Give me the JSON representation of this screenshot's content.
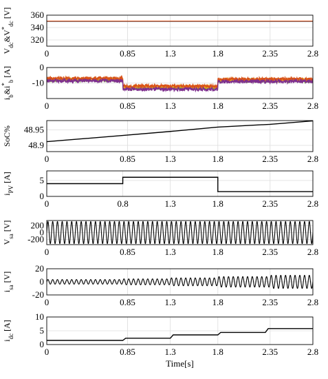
{
  "chart_data": [
    {
      "type": "line",
      "ylabel_main": "V",
      "ylabel_sub": "dc",
      "ylabel_mid": "&V",
      "ylabel_sup": "*",
      "ylabel_sub2": "dc",
      "ylabel_unit": "[V]",
      "xlim": [
        0,
        2.8
      ],
      "ylim": [
        310,
        360
      ],
      "xticks": [
        0,
        0.85,
        1.3,
        1.8,
        2.35,
        2.8
      ],
      "xtick_labels": [
        "0",
        "0.85",
        "1.3",
        "1.8",
        "2.35",
        "2.8"
      ],
      "yticks": [
        320,
        340,
        360
      ],
      "ytick_labels": [
        "320",
        "340",
        "360"
      ],
      "series": [
        {
          "color": "#0072bd",
          "x": [
            0,
            2.8
          ],
          "y": [
            350,
            350
          ]
        },
        {
          "color": "#d95319",
          "x": [
            0,
            2.8
          ],
          "y": [
            350.3,
            350.3
          ]
        }
      ]
    },
    {
      "type": "line",
      "ylabel_main": "i",
      "ylabel_sub": "b",
      "ylabel_mid": "&i",
      "ylabel_sup": "*",
      "ylabel_sub2": "b",
      "ylabel_unit": "[A]",
      "xlim": [
        0,
        2.8
      ],
      "ylim": [
        -20,
        0
      ],
      "xticks": [
        0,
        0.85,
        1.3,
        1.8,
        2.35,
        2.8
      ],
      "xtick_labels": [
        "0",
        "0.85",
        "1.3",
        "1.8",
        "2.35",
        "2.8"
      ],
      "yticks": [
        -20,
        -10,
        0
      ],
      "ytick_labels": [
        "",
        "-10",
        "0"
      ],
      "noisy": true,
      "series": [
        {
          "color": "#77ac30",
          "x": [
            0,
            0.8,
            0.8,
            1.8,
            1.8,
            2.8
          ],
          "y": [
            -8,
            -8,
            -13,
            -13,
            -8.5,
            -8.5
          ]
        },
        {
          "color": "#edb120",
          "x": [
            0,
            0.8,
            0.8,
            1.8,
            1.8,
            2.8
          ],
          "y": [
            -7.5,
            -7.5,
            -12.5,
            -12.5,
            -8,
            -8
          ]
        },
        {
          "color": "#d95319",
          "x": [
            0,
            0.8,
            0.8,
            1.8,
            1.8,
            2.8
          ],
          "y": [
            -7,
            -7,
            -12,
            -12,
            -7.5,
            -7.5
          ]
        },
        {
          "color": "#7e2f8e",
          "x": [
            0,
            0.8,
            0.8,
            1.8,
            1.8,
            2.8
          ],
          "y": [
            -8.5,
            -8.5,
            -14,
            -14,
            -9,
            -9
          ]
        }
      ]
    },
    {
      "type": "line",
      "ylabel_main": "SoC%",
      "ylabel_sub": "",
      "ylabel_unit": "",
      "xlim": [
        0,
        2.8
      ],
      "ylim": [
        48.88,
        48.98
      ],
      "xticks": [
        0,
        0.85,
        1.3,
        1.8,
        2.35,
        2.8
      ],
      "xtick_labels": [
        "0",
        "0.85",
        "1.3",
        "1.8",
        "2.35",
        "2.8"
      ],
      "yticks": [
        48.9,
        48.95
      ],
      "ytick_labels": [
        "48.9",
        "48.95"
      ],
      "series": [
        {
          "color": "#000000",
          "x": [
            0,
            0.4,
            0.8,
            1.3,
            1.8,
            2.35,
            2.8
          ],
          "y": [
            48.912,
            48.922,
            48.932,
            48.945,
            48.959,
            48.968,
            48.979
          ]
        }
      ]
    },
    {
      "type": "line",
      "ylabel_main": "i",
      "ylabel_sub": "PV",
      "ylabel_unit": "[A]",
      "xlim": [
        0,
        2.8
      ],
      "ylim": [
        0,
        8
      ],
      "xticks": [
        0,
        0.8,
        1.3,
        1.8,
        2.35,
        2.8
      ],
      "xtick_labels": [
        "0",
        "0.8",
        "1.3",
        "1.8",
        "2.35",
        "2.8"
      ],
      "yticks": [
        0,
        5
      ],
      "ytick_labels": [
        "0",
        "5"
      ],
      "series": [
        {
          "color": "#000000",
          "x": [
            0,
            0.8,
            0.8,
            1.8,
            1.8,
            2.8
          ],
          "y": [
            4,
            4,
            6,
            6,
            1.5,
            1.5
          ]
        }
      ]
    },
    {
      "type": "line",
      "ylabel_main": "V",
      "ylabel_sub": "sa",
      "ylabel_unit": "[V]",
      "xlim": [
        0,
        2.8
      ],
      "ylim": [
        -350,
        350
      ],
      "xticks": [
        0,
        0.85,
        1.3,
        1.8,
        2.35,
        2.8
      ],
      "xtick_labels": [
        "0",
        "0.85",
        "1.3",
        "1.8",
        "2.35",
        "2.8"
      ],
      "yticks": [
        -200,
        0,
        200
      ],
      "ytick_labels": [
        "-200",
        "0",
        "200"
      ],
      "sine": {
        "amplitude": 320,
        "cycles": 56,
        "envelope": [
          [
            0,
            320
          ],
          [
            2.8,
            320
          ]
        ]
      },
      "series": [
        {
          "color": "#000000"
        }
      ]
    },
    {
      "type": "line",
      "ylabel_main": "i",
      "ylabel_sub": "sa",
      "ylabel_unit": "[V]",
      "xlim": [
        0,
        2.8
      ],
      "ylim": [
        -20,
        20
      ],
      "xticks": [
        0,
        0.85,
        1.3,
        1.8,
        2.35,
        2.8
      ],
      "xtick_labels": [
        "0",
        "0.85",
        "1.3",
        "1.8",
        "2.35",
        "2.8"
      ],
      "yticks": [
        -20,
        0,
        20
      ],
      "ytick_labels": [
        "-20",
        "0",
        "20"
      ],
      "sine": {
        "cycles": 56,
        "envelope": [
          [
            0,
            3.5
          ],
          [
            0.8,
            3.5
          ],
          [
            0.8,
            4.5
          ],
          [
            1.3,
            4.5
          ],
          [
            1.3,
            6
          ],
          [
            1.8,
            6
          ],
          [
            1.8,
            8
          ],
          [
            2.35,
            8
          ],
          [
            2.35,
            10
          ],
          [
            2.8,
            10
          ]
        ]
      },
      "series": [
        {
          "color": "#000000"
        }
      ]
    },
    {
      "type": "line",
      "ylabel_main": "i",
      "ylabel_sub": "dc",
      "ylabel_unit": "[A]",
      "xlim": [
        0,
        2.8
      ],
      "ylim": [
        0,
        10
      ],
      "xticks": [
        0,
        0.85,
        1.3,
        1.8,
        2.35,
        2.8
      ],
      "xtick_labels": [
        "0",
        "0.85",
        "1.3",
        "1.8",
        "2.35",
        "2.8"
      ],
      "yticks": [
        0,
        5,
        10
      ],
      "ytick_labels": [
        "0",
        "5",
        "10"
      ],
      "xlabel": "Time[s]",
      "series": [
        {
          "color": "#000000",
          "x": [
            0,
            0.8,
            0.83,
            1.3,
            1.33,
            1.8,
            1.83,
            2.3,
            2.33,
            2.8
          ],
          "y": [
            1.5,
            1.5,
            2.3,
            2.3,
            3.5,
            3.5,
            4.4,
            4.4,
            5.8,
            5.8
          ]
        }
      ]
    }
  ]
}
